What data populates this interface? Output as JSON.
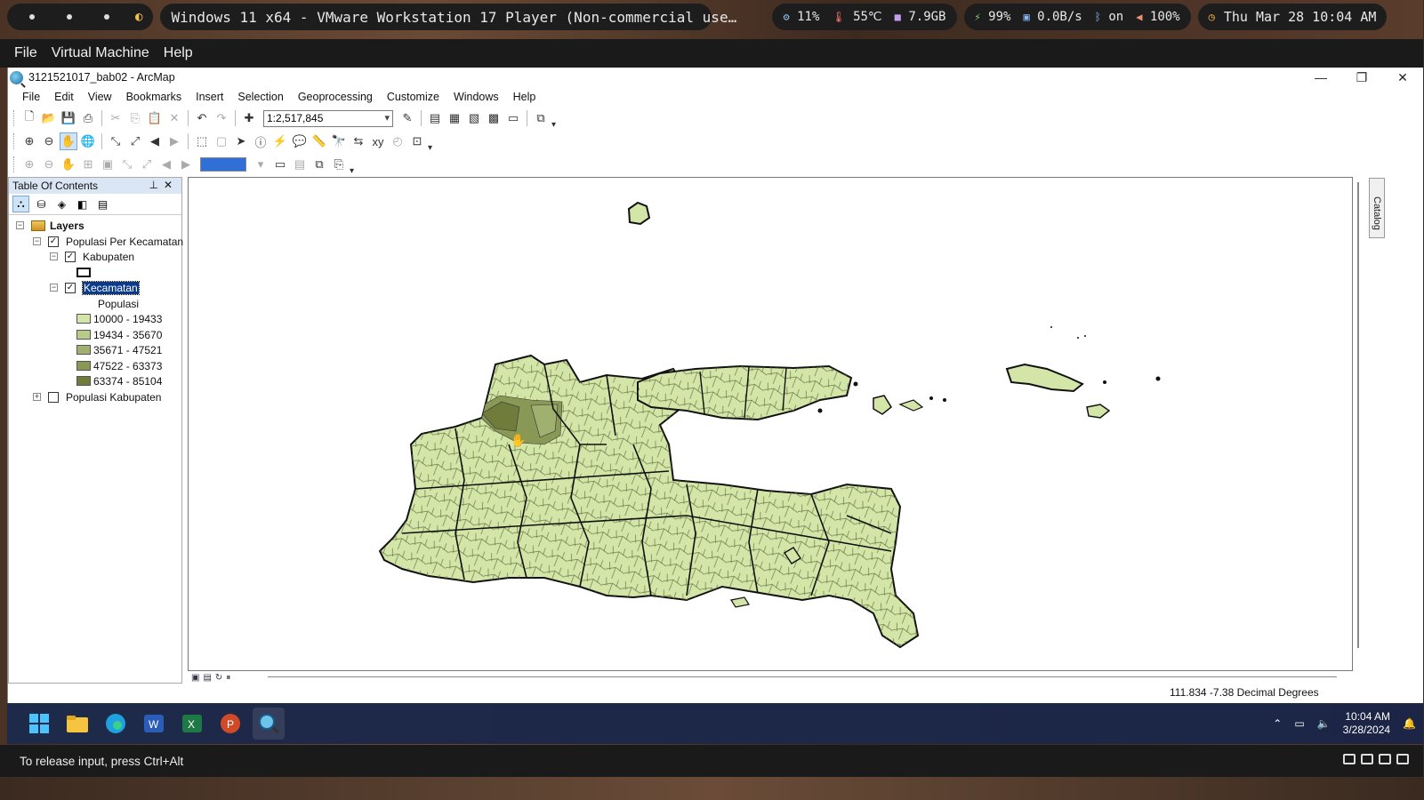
{
  "topbar": {
    "workspace_dots": 3,
    "window_title": "Windows 11 x64 - VMware Workstation 17 Player (Non-commercial use…",
    "sys": {
      "cpu": "11%",
      "temp": "55℃",
      "mem": "7.9GB"
    },
    "net": {
      "battery": "99%",
      "speed": "0.0B/s",
      "bt": "on",
      "volume": "100%"
    },
    "datetime": "Thu Mar 28 10:04 AM"
  },
  "vmware_menu": {
    "items": [
      "File",
      "Virtual Machine",
      "Help"
    ]
  },
  "arcmap": {
    "title": "3121521017_bab02 - ArcMap",
    "window_controls": {
      "minimize": "—",
      "restore": "❐",
      "close": "✕"
    },
    "menu": [
      "File",
      "Edit",
      "View",
      "Bookmarks",
      "Insert",
      "Selection",
      "Geoprocessing",
      "Customize",
      "Windows",
      "Help"
    ],
    "scale": "1:2,517,845",
    "toc": {
      "title": "Table Of Contents",
      "root": "Layers",
      "group": "Populasi Per Kecamatan",
      "kabupaten": "Kabupaten",
      "kecamatan": "Kecamatan",
      "field": "Populasi",
      "classes": [
        {
          "label": "10000 - 19433",
          "color": "#d3e6a7"
        },
        {
          "label": "19434 - 35670",
          "color": "#b8cc8a"
        },
        {
          "label": "35671 - 47521",
          "color": "#a0b06e"
        },
        {
          "label": "47522 - 63373",
          "color": "#8a9856"
        },
        {
          "label": "63374 - 85104",
          "color": "#6f7c3c"
        }
      ],
      "other_layer": "Populasi Kabupaten"
    },
    "catalog_tab": "Catalog",
    "coordinates": "111.834  -7.38 Decimal Degrees"
  },
  "taskbar": {
    "time": "10:04 AM",
    "date": "3/28/2024"
  },
  "vm_status": "To release input, press Ctrl+Alt",
  "colors": {
    "map_fill": "#d3e6a7",
    "selection": "#0a3a8c",
    "taskbar": "#1e2a4a"
  }
}
